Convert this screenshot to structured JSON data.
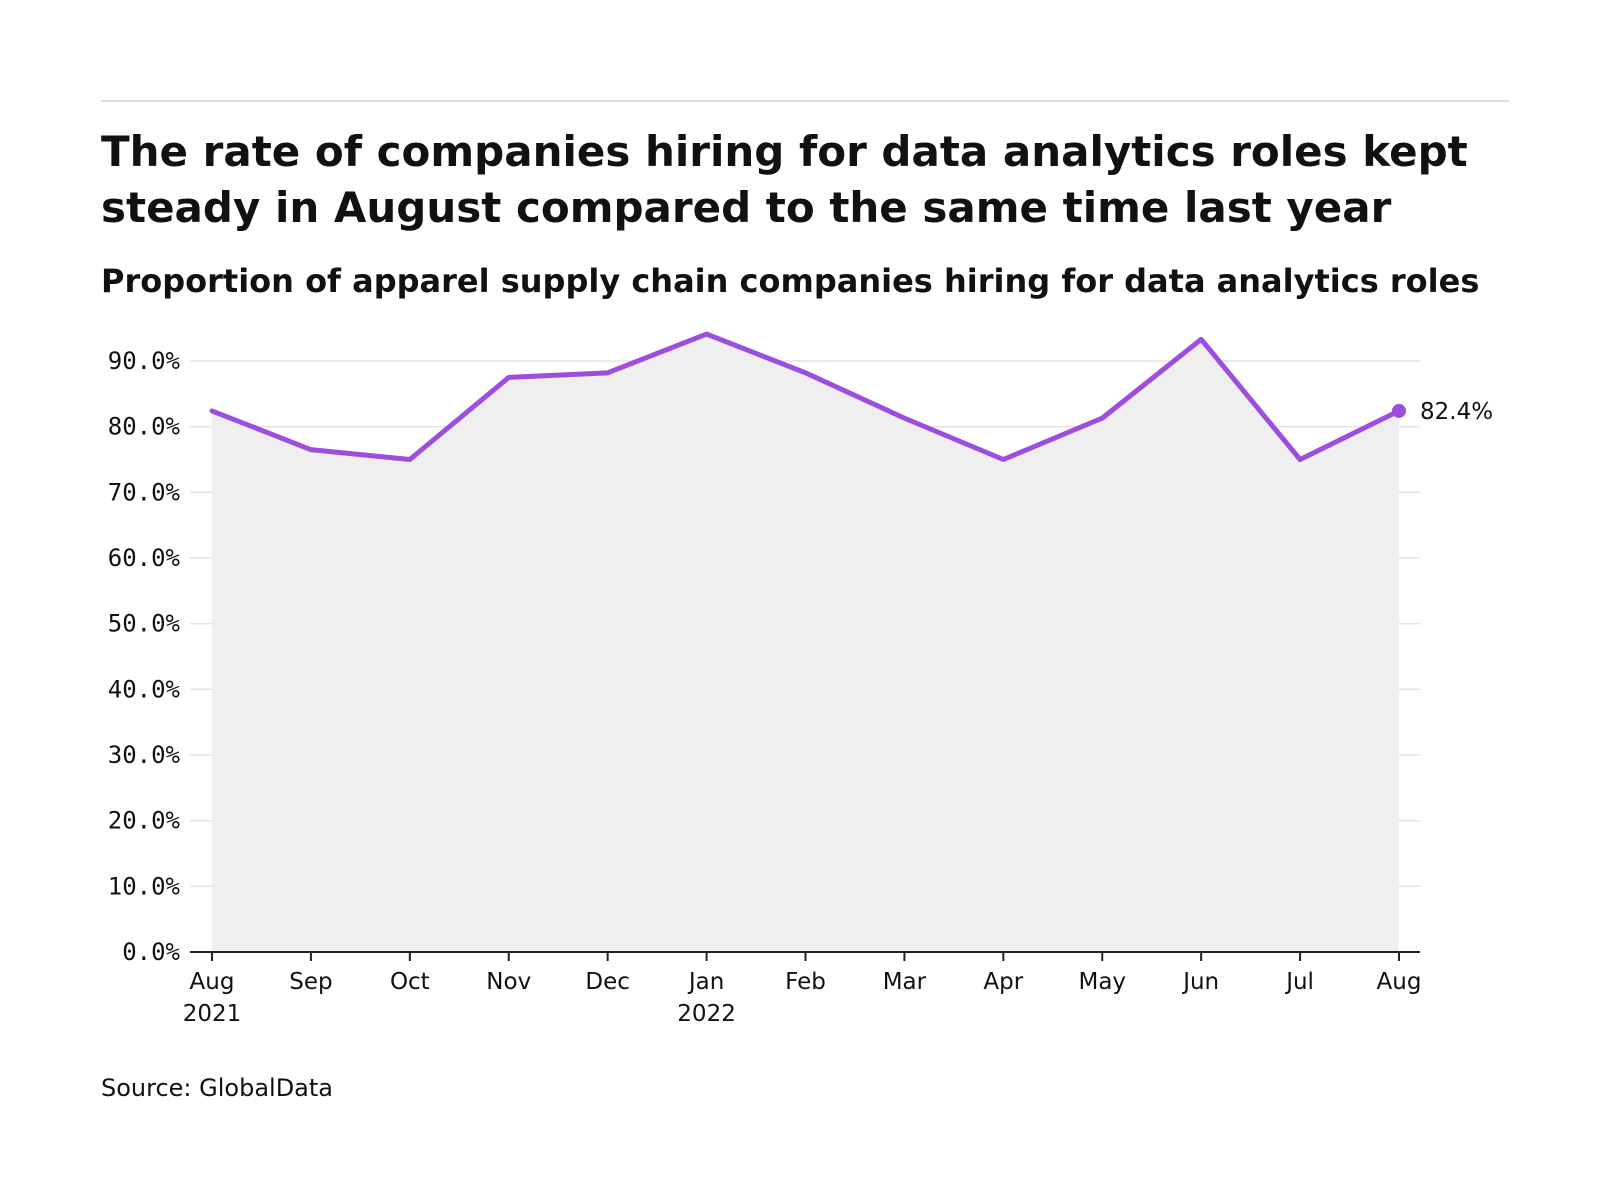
{
  "header": {
    "title": "The rate of companies hiring for data analytics roles kept steady in August compared to the same time last year",
    "subtitle": "Proportion of apparel supply chain companies hiring for data analytics roles"
  },
  "footer": {
    "source": "Source: GlobalData"
  },
  "chart_data": {
    "type": "area",
    "title": "The rate of companies hiring for data analytics roles kept steady in August compared to the same time last year",
    "subtitle": "Proportion of apparel supply chain companies hiring for data analytics roles",
    "categories": [
      {
        "month": "Aug",
        "year": "2021"
      },
      {
        "month": "Sep",
        "year": ""
      },
      {
        "month": "Oct",
        "year": ""
      },
      {
        "month": "Nov",
        "year": ""
      },
      {
        "month": "Dec",
        "year": ""
      },
      {
        "month": "Jan",
        "year": "2022"
      },
      {
        "month": "Feb",
        "year": ""
      },
      {
        "month": "Mar",
        "year": ""
      },
      {
        "month": "Apr",
        "year": ""
      },
      {
        "month": "May",
        "year": ""
      },
      {
        "month": "Jun",
        "year": ""
      },
      {
        "month": "Jul",
        "year": ""
      },
      {
        "month": "Aug",
        "year": ""
      }
    ],
    "values": [
      82.4,
      76.5,
      75.0,
      87.5,
      88.2,
      94.1,
      88.2,
      81.3,
      75.0,
      81.3,
      93.3,
      75.0,
      82.4
    ],
    "ylim": [
      0,
      90
    ],
    "yticks": [
      0,
      10,
      20,
      30,
      40,
      50,
      60,
      70,
      80,
      90
    ],
    "ytick_labels": [
      "0.0%",
      "10.0%",
      "20.0%",
      "30.0%",
      "40.0%",
      "50.0%",
      "60.0%",
      "70.0%",
      "80.0%",
      "90.0%"
    ],
    "end_label": "82.4%",
    "grid": true,
    "xlabel": "",
    "ylabel": "",
    "colors": {
      "line": "#9d4ede",
      "area": "#efefef",
      "grid": "#e3e3e3",
      "axis": "#222222",
      "text": "#111111"
    }
  }
}
